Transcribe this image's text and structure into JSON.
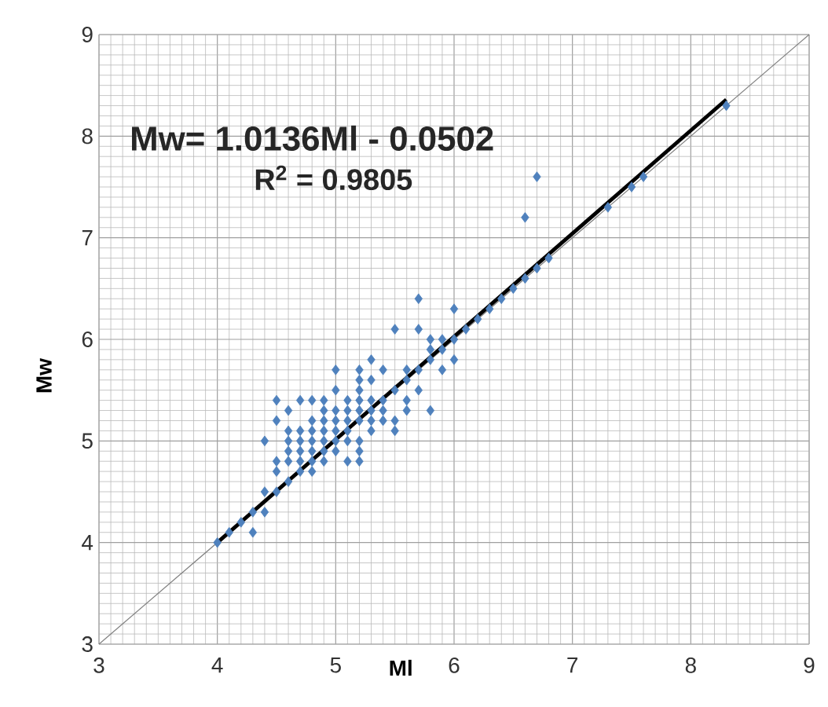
{
  "chart_data": {
    "type": "scatter",
    "xlabel": "Ml",
    "ylabel": "Mw",
    "annotations": [
      "Mw= 1.0136Ml - 0.0502",
      "R$^{2}$ = 0.9805"
    ],
    "xlim": [
      3,
      9
    ],
    "ylim": [
      3,
      9
    ],
    "xticks": [
      3,
      4,
      5,
      6,
      7,
      8,
      9
    ],
    "yticks": [
      3,
      4,
      5,
      6,
      7,
      8,
      9
    ],
    "grid": true,
    "series": [
      {
        "color": "#4f81bd",
        "marker": "diamond",
        "x": [
          4.0,
          4.1,
          4.2,
          4.3,
          4.3,
          4.4,
          4.4,
          4.5,
          4.4,
          4.5,
          4.5,
          4.5,
          4.5,
          4.6,
          4.6,
          4.6,
          4.6,
          4.6,
          4.6,
          4.7,
          4.7,
          4.7,
          4.7,
          4.7,
          4.7,
          4.8,
          4.8,
          4.8,
          4.8,
          4.8,
          4.8,
          4.8,
          4.9,
          4.9,
          4.9,
          4.9,
          4.9,
          4.9,
          4.9,
          5.0,
          5.0,
          5.0,
          5.0,
          5.0,
          5.0,
          5.0,
          5.1,
          5.1,
          5.1,
          5.1,
          5.1,
          5.1,
          5.2,
          5.2,
          5.2,
          5.2,
          5.2,
          5.2,
          5.2,
          5.2,
          5.2,
          5.3,
          5.3,
          5.3,
          5.3,
          5.3,
          5.3,
          5.4,
          5.4,
          5.4,
          5.4,
          5.5,
          5.5,
          5.5,
          5.5,
          5.6,
          5.6,
          5.6,
          5.6,
          5.7,
          5.7,
          5.7,
          5.7,
          5.8,
          5.8,
          5.8,
          5.8,
          5.9,
          5.9,
          5.9,
          6.0,
          6.0,
          6.0,
          6.1,
          6.2,
          6.3,
          6.4,
          6.5,
          6.6,
          6.6,
          6.7,
          6.7,
          6.8,
          7.3,
          7.5,
          7.6,
          8.3
        ],
        "values": [
          4.0,
          4.1,
          4.2,
          4.3,
          4.1,
          4.3,
          4.5,
          4.5,
          5.0,
          4.7,
          4.8,
          5.2,
          5.4,
          4.6,
          4.8,
          4.9,
          5.0,
          5.1,
          5.3,
          4.7,
          4.8,
          4.9,
          5.0,
          5.1,
          5.4,
          4.7,
          4.8,
          4.9,
          5.0,
          5.1,
          5.2,
          5.4,
          4.8,
          4.9,
          5.0,
          5.1,
          5.2,
          5.3,
          5.4,
          4.9,
          5.0,
          5.1,
          5.2,
          5.3,
          5.5,
          5.7,
          4.8,
          5.0,
          5.1,
          5.2,
          5.3,
          5.4,
          4.8,
          4.9,
          5.0,
          5.2,
          5.3,
          5.4,
          5.5,
          5.6,
          5.7,
          5.1,
          5.2,
          5.3,
          5.4,
          5.6,
          5.8,
          5.2,
          5.3,
          5.4,
          5.7,
          5.1,
          5.2,
          5.5,
          6.1,
          5.3,
          5.4,
          5.6,
          5.7,
          5.5,
          5.7,
          6.1,
          6.4,
          5.3,
          5.8,
          5.9,
          6.0,
          5.7,
          5.9,
          6.0,
          5.8,
          6.0,
          6.3,
          6.1,
          6.2,
          6.3,
          6.4,
          6.5,
          6.6,
          7.2,
          6.7,
          7.6,
          6.8,
          7.3,
          7.5,
          7.6,
          8.3
        ]
      },
      {
        "type": "line",
        "color": "#808080",
        "x": [
          3,
          9
        ],
        "values": [
          3,
          9
        ]
      },
      {
        "type": "line",
        "color": "#000000",
        "x": [
          4.0,
          8.3
        ],
        "values": [
          4.0,
          8.36
        ]
      }
    ]
  }
}
